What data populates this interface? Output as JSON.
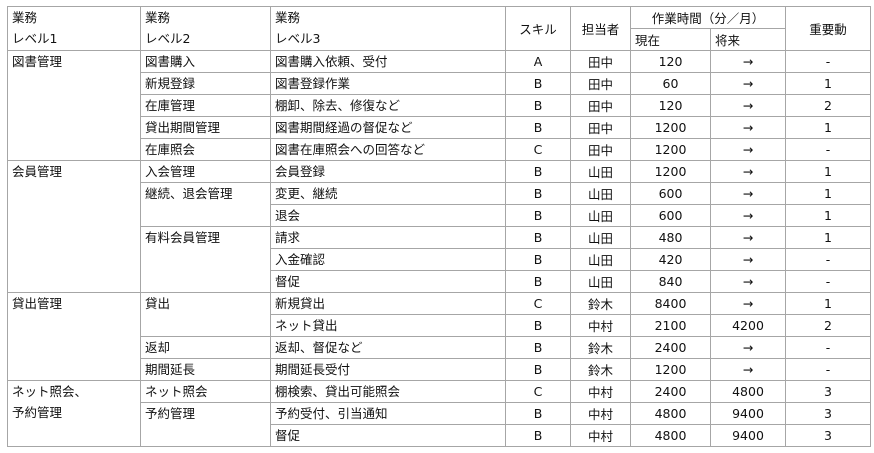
{
  "header": {
    "level1": [
      "業務",
      "レベル1"
    ],
    "level2": [
      "業務",
      "レベル2"
    ],
    "level3": [
      "業務",
      "レベル3"
    ],
    "skill": "スキル",
    "owner": "担当者",
    "time": "作業時間（分／月）",
    "current": "現在",
    "future": "将来",
    "importance": "重要動"
  },
  "groups": [
    {
      "level1": [
        "図書管理"
      ],
      "items": [
        {
          "level2": "図書購入",
          "tasks": [
            {
              "level3": "図書購入依頼、受付",
              "skill": "A",
              "owner": "田中",
              "current": 120,
              "future": "→",
              "importance": "-"
            }
          ]
        },
        {
          "level2": "新規登録",
          "tasks": [
            {
              "level3": "図書登録作業",
              "skill": "B",
              "owner": "田中",
              "current": 60,
              "future": "→",
              "importance": 1
            }
          ]
        },
        {
          "level2": "在庫管理",
          "tasks": [
            {
              "level3": "棚卸、除去、修復など",
              "skill": "B",
              "owner": "田中",
              "current": 120,
              "future": "→",
              "importance": 2
            }
          ]
        },
        {
          "level2": "貸出期間管理",
          "tasks": [
            {
              "level3": "図書期間経過の督促など",
              "skill": "B",
              "owner": "田中",
              "current": 1200,
              "future": "→",
              "importance": 1
            }
          ]
        },
        {
          "level2": "在庫照会",
          "tasks": [
            {
              "level3": "図書在庫照会への回答など",
              "skill": "C",
              "owner": "田中",
              "current": 1200,
              "future": "→",
              "importance": "-"
            }
          ]
        }
      ]
    },
    {
      "level1": [
        "会員管理"
      ],
      "items": [
        {
          "level2": "入会管理",
          "tasks": [
            {
              "level3": "会員登録",
              "skill": "B",
              "owner": "山田",
              "current": 1200,
              "future": "→",
              "importance": 1
            }
          ]
        },
        {
          "level2": "継続、退会管理",
          "tasks": [
            {
              "level3": "変更、継続",
              "skill": "B",
              "owner": "山田",
              "current": 600,
              "future": "→",
              "importance": 1
            },
            {
              "level3": "退会",
              "skill": "B",
              "owner": "山田",
              "current": 600,
              "future": "→",
              "importance": 1
            }
          ]
        },
        {
          "level2": "有料会員管理",
          "tasks": [
            {
              "level3": "請求",
              "skill": "B",
              "owner": "山田",
              "current": 480,
              "future": "→",
              "importance": 1
            },
            {
              "level3": "入金確認",
              "skill": "B",
              "owner": "山田",
              "current": 420,
              "future": "→",
              "importance": "-"
            },
            {
              "level3": "督促",
              "skill": "B",
              "owner": "山田",
              "current": 840,
              "future": "→",
              "importance": "-"
            }
          ]
        }
      ]
    },
    {
      "level1": [
        "貸出管理"
      ],
      "items": [
        {
          "level2": "貸出",
          "tasks": [
            {
              "level3": "新規貸出",
              "skill": "C",
              "owner": "鈴木",
              "current": 8400,
              "future": "→",
              "importance": 1
            },
            {
              "level3": "ネット貸出",
              "skill": "B",
              "owner": "中村",
              "current": 2100,
              "future": 4200,
              "importance": 2
            }
          ]
        },
        {
          "level2": "返却",
          "tasks": [
            {
              "level3": "返却、督促など",
              "skill": "B",
              "owner": "鈴木",
              "current": 2400,
              "future": "→",
              "importance": "-"
            }
          ]
        },
        {
          "level2": "期間延長",
          "tasks": [
            {
              "level3": "期間延長受付",
              "skill": "B",
              "owner": "鈴木",
              "current": 1200,
              "future": "→",
              "importance": "-"
            }
          ]
        }
      ]
    },
    {
      "level1": [
        "ネット照会、",
        "予約管理"
      ],
      "items": [
        {
          "level2": "ネット照会",
          "tasks": [
            {
              "level3": "棚検索、貸出可能照会",
              "skill": "C",
              "owner": "中村",
              "current": 2400,
              "future": 4800,
              "importance": 3
            }
          ]
        },
        {
          "level2": "予約管理",
          "tasks": [
            {
              "level3": "予約受付、引当通知",
              "skill": "B",
              "owner": "中村",
              "current": 4800,
              "future": 9400,
              "importance": 3
            },
            {
              "level3": "督促",
              "skill": "B",
              "owner": "中村",
              "current": 4800,
              "future": 9400,
              "importance": 3
            }
          ]
        }
      ]
    }
  ]
}
